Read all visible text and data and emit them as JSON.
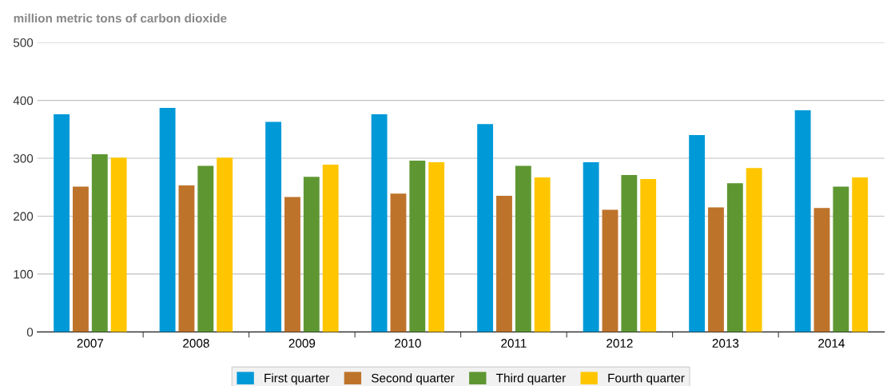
{
  "chart_data": {
    "type": "bar",
    "ylabel": "million metric tons of carbon dioxide",
    "categories": [
      "2007",
      "2008",
      "2009",
      "2010",
      "2011",
      "2012",
      "2013",
      "2014"
    ],
    "series": [
      {
        "name": "First quarter",
        "color": "#0099d8",
        "values": [
          376,
          387,
          363,
          376,
          359,
          293,
          340,
          383
        ]
      },
      {
        "name": "Second quarter",
        "color": "#be732b",
        "values": [
          251,
          253,
          233,
          239,
          235,
          211,
          215,
          214
        ]
      },
      {
        "name": "Third quarter",
        "color": "#5e9732",
        "values": [
          307,
          287,
          268,
          296,
          287,
          271,
          257,
          251
        ]
      },
      {
        "name": "Fourth quarter",
        "color": "#ffc600",
        "values": [
          301,
          301,
          289,
          293,
          267,
          264,
          283,
          267
        ]
      }
    ],
    "ylim": [
      0,
      500
    ],
    "yticks": [
      0,
      100,
      200,
      300,
      400,
      500
    ],
    "grid": "y",
    "legend": "bottom"
  }
}
